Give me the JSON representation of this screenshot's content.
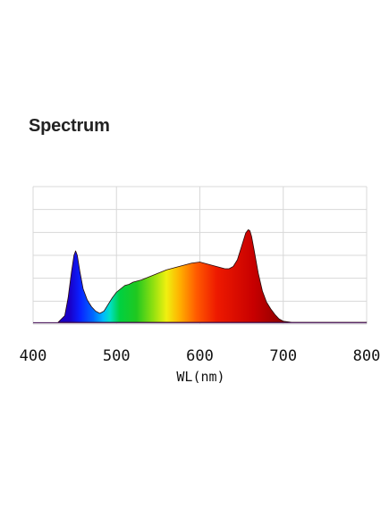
{
  "title": "Spectrum",
  "chart_data": {
    "type": "area",
    "title": "Spectrum",
    "xlabel": "WL(nm)",
    "ylabel": "",
    "xlim": [
      400,
      800
    ],
    "ylim": [
      0,
      1
    ],
    "xticks": [
      "400",
      "500",
      "600",
      "700",
      "800"
    ],
    "grid": true,
    "legend": "none",
    "fill": "wavelength-rainbow gradient",
    "series": [
      {
        "x": [
          430,
          438,
          442,
          446,
          449,
          451,
          453,
          456,
          460,
          465,
          470,
          475,
          480,
          485,
          490,
          495,
          500,
          505,
          510,
          515,
          520,
          525,
          530,
          540,
          550,
          560,
          570,
          580,
          590,
          600,
          605,
          610,
          620,
          630,
          635,
          640,
          645,
          650,
          655,
          658,
          660,
          662,
          665,
          670,
          675,
          680,
          685,
          690,
          695,
          700,
          705,
          710,
          800
        ],
        "values": [
          0.0,
          0.06,
          0.22,
          0.45,
          0.6,
          0.64,
          0.6,
          0.46,
          0.3,
          0.2,
          0.14,
          0.1,
          0.08,
          0.1,
          0.16,
          0.22,
          0.27,
          0.3,
          0.33,
          0.34,
          0.36,
          0.37,
          0.38,
          0.41,
          0.44,
          0.47,
          0.49,
          0.51,
          0.53,
          0.54,
          0.53,
          0.52,
          0.5,
          0.48,
          0.48,
          0.5,
          0.56,
          0.68,
          0.8,
          0.83,
          0.82,
          0.77,
          0.65,
          0.44,
          0.28,
          0.18,
          0.12,
          0.07,
          0.03,
          0.01,
          0.005,
          0.0,
          0.0
        ]
      }
    ]
  }
}
